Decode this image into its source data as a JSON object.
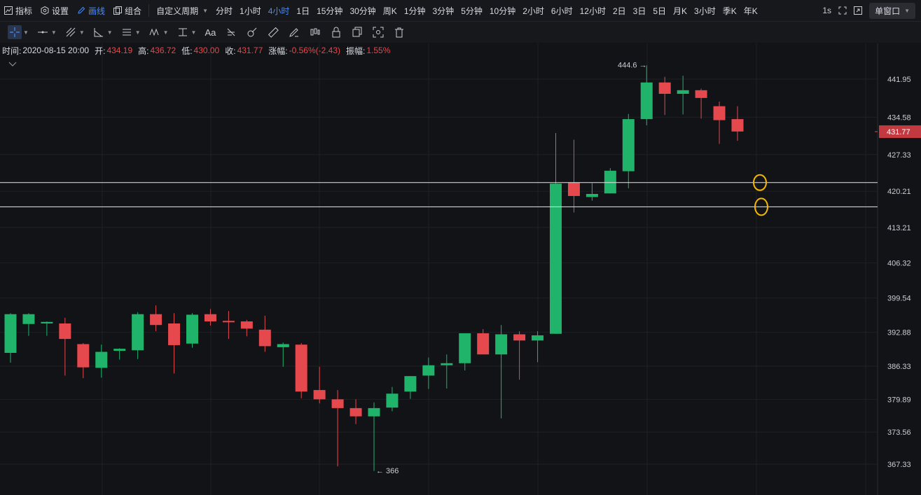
{
  "toolbar": {
    "indicators_label": "指标",
    "settings_label": "设置",
    "draw_label": "画线",
    "combo_label": "组合",
    "custom_period_label": "自定义周期",
    "periods": [
      "分时",
      "1小时",
      "4小时",
      "1日",
      "15分钟",
      "30分钟",
      "周K",
      "1分钟",
      "3分钟",
      "5分钟",
      "10分钟",
      "2小时",
      "6小时",
      "12小时",
      "2日",
      "3日",
      "5日",
      "月K",
      "3小时",
      "季K",
      "年K"
    ],
    "active_period": "4小时",
    "refresh_label": "1s",
    "window_label": "单窗口"
  },
  "draw_tools": [
    "crosshair-tool",
    "horizontal-line-tool",
    "trend-line-tool",
    "angle-tool",
    "parallel-channel-tool",
    "wave-tool",
    "measure-tool",
    "text-tool",
    "fib-tool",
    "brush-tool",
    "ruler-tool",
    "pen-tool",
    "pattern-tool",
    "lock-tool",
    "copy-tool",
    "screenshot-tool",
    "delete-tool"
  ],
  "text_tool_label": "Aa",
  "info": {
    "time_label": "时间:",
    "time_value": "2020-08-15 20:00",
    "open_label": "开:",
    "open_value": "434.19",
    "high_label": "高:",
    "high_value": "436.72",
    "low_label": "低:",
    "low_value": "430.00",
    "close_label": "收:",
    "close_value": "431.77",
    "change_label": "涨幅:",
    "change_value": "-0.56%(-2.43)",
    "amplitude_label": "振幅:",
    "amplitude_value": "1.55%"
  },
  "colors": {
    "up": "#1fb46a",
    "down": "#e5484d",
    "accent": "#4c8cf5",
    "marker": "#f5b800",
    "hline": "#e6e6e6"
  },
  "chart_data": {
    "type": "candlestick",
    "y_ticks": [
      "441.95",
      "434.58",
      "427.33",
      "420.21",
      "413.21",
      "406.32",
      "399.54",
      "392.88",
      "386.33",
      "379.89",
      "373.56",
      "367.33"
    ],
    "y_range": [
      364,
      447
    ],
    "last_price": "431.77",
    "max_label": "444.6",
    "min_label": "366",
    "horizontal_lines": [
      421.9,
      417.2
    ],
    "candles": [
      [
        388.9,
        396.6,
        387.0,
        396.4
      ],
      [
        394.5,
        396.6,
        392.2,
        396.4
      ],
      [
        394.6,
        395.0,
        392.2,
        394.9
      ],
      [
        394.6,
        395.7,
        384.5,
        391.6
      ],
      [
        390.6,
        390.8,
        384.0,
        386.1
      ],
      [
        386.0,
        390.5,
        384.1,
        389.1
      ],
      [
        389.3,
        389.8,
        387.6,
        389.7
      ],
      [
        389.4,
        396.8,
        387.7,
        396.4
      ],
      [
        396.4,
        398.1,
        393.1,
        394.3
      ],
      [
        394.6,
        396.6,
        384.9,
        390.4
      ],
      [
        390.7,
        396.6,
        389.9,
        396.3
      ],
      [
        396.4,
        397.4,
        394.2,
        395.0
      ],
      [
        395.1,
        397.0,
        391.6,
        395.0
      ],
      [
        395.0,
        395.3,
        392.1,
        393.6
      ],
      [
        393.4,
        396.1,
        389.1,
        390.2
      ],
      [
        390.0,
        390.9,
        386.2,
        390.6
      ],
      [
        390.5,
        390.8,
        380.1,
        381.4
      ],
      [
        381.7,
        386.2,
        379.1,
        379.9
      ],
      [
        379.9,
        381.7,
        366.9,
        378.2
      ],
      [
        378.2,
        379.9,
        375.1,
        376.6
      ],
      [
        376.6,
        379.3,
        366.0,
        378.2
      ],
      [
        378.3,
        382.3,
        377.6,
        381.0
      ],
      [
        381.4,
        384.4,
        380.0,
        384.4
      ],
      [
        384.5,
        388.0,
        381.9,
        386.5
      ],
      [
        386.5,
        388.6,
        382.0,
        386.9
      ],
      [
        386.9,
        392.7,
        385.5,
        392.7
      ],
      [
        392.7,
        393.5,
        388.6,
        388.6
      ],
      [
        388.6,
        394.3,
        376.2,
        392.5
      ],
      [
        392.5,
        393.1,
        383.7,
        391.3
      ],
      [
        391.3,
        393.1,
        387.1,
        392.3
      ],
      [
        392.6,
        431.5,
        392.6,
        421.7
      ],
      [
        421.9,
        430.2,
        416.1,
        419.3
      ],
      [
        419.1,
        421.8,
        418.4,
        419.7
      ],
      [
        419.8,
        424.7,
        419.8,
        424.2
      ],
      [
        424.1,
        435.2,
        420.8,
        434.2
      ],
      [
        434.2,
        444.6,
        433.0,
        441.3
      ],
      [
        441.3,
        442.4,
        435.0,
        439.1
      ],
      [
        439.1,
        442.6,
        435.1,
        439.8
      ],
      [
        439.8,
        440.1,
        434.3,
        438.3
      ],
      [
        436.7,
        437.6,
        429.4,
        434.0
      ],
      [
        434.2,
        436.7,
        430.0,
        431.8
      ]
    ]
  }
}
